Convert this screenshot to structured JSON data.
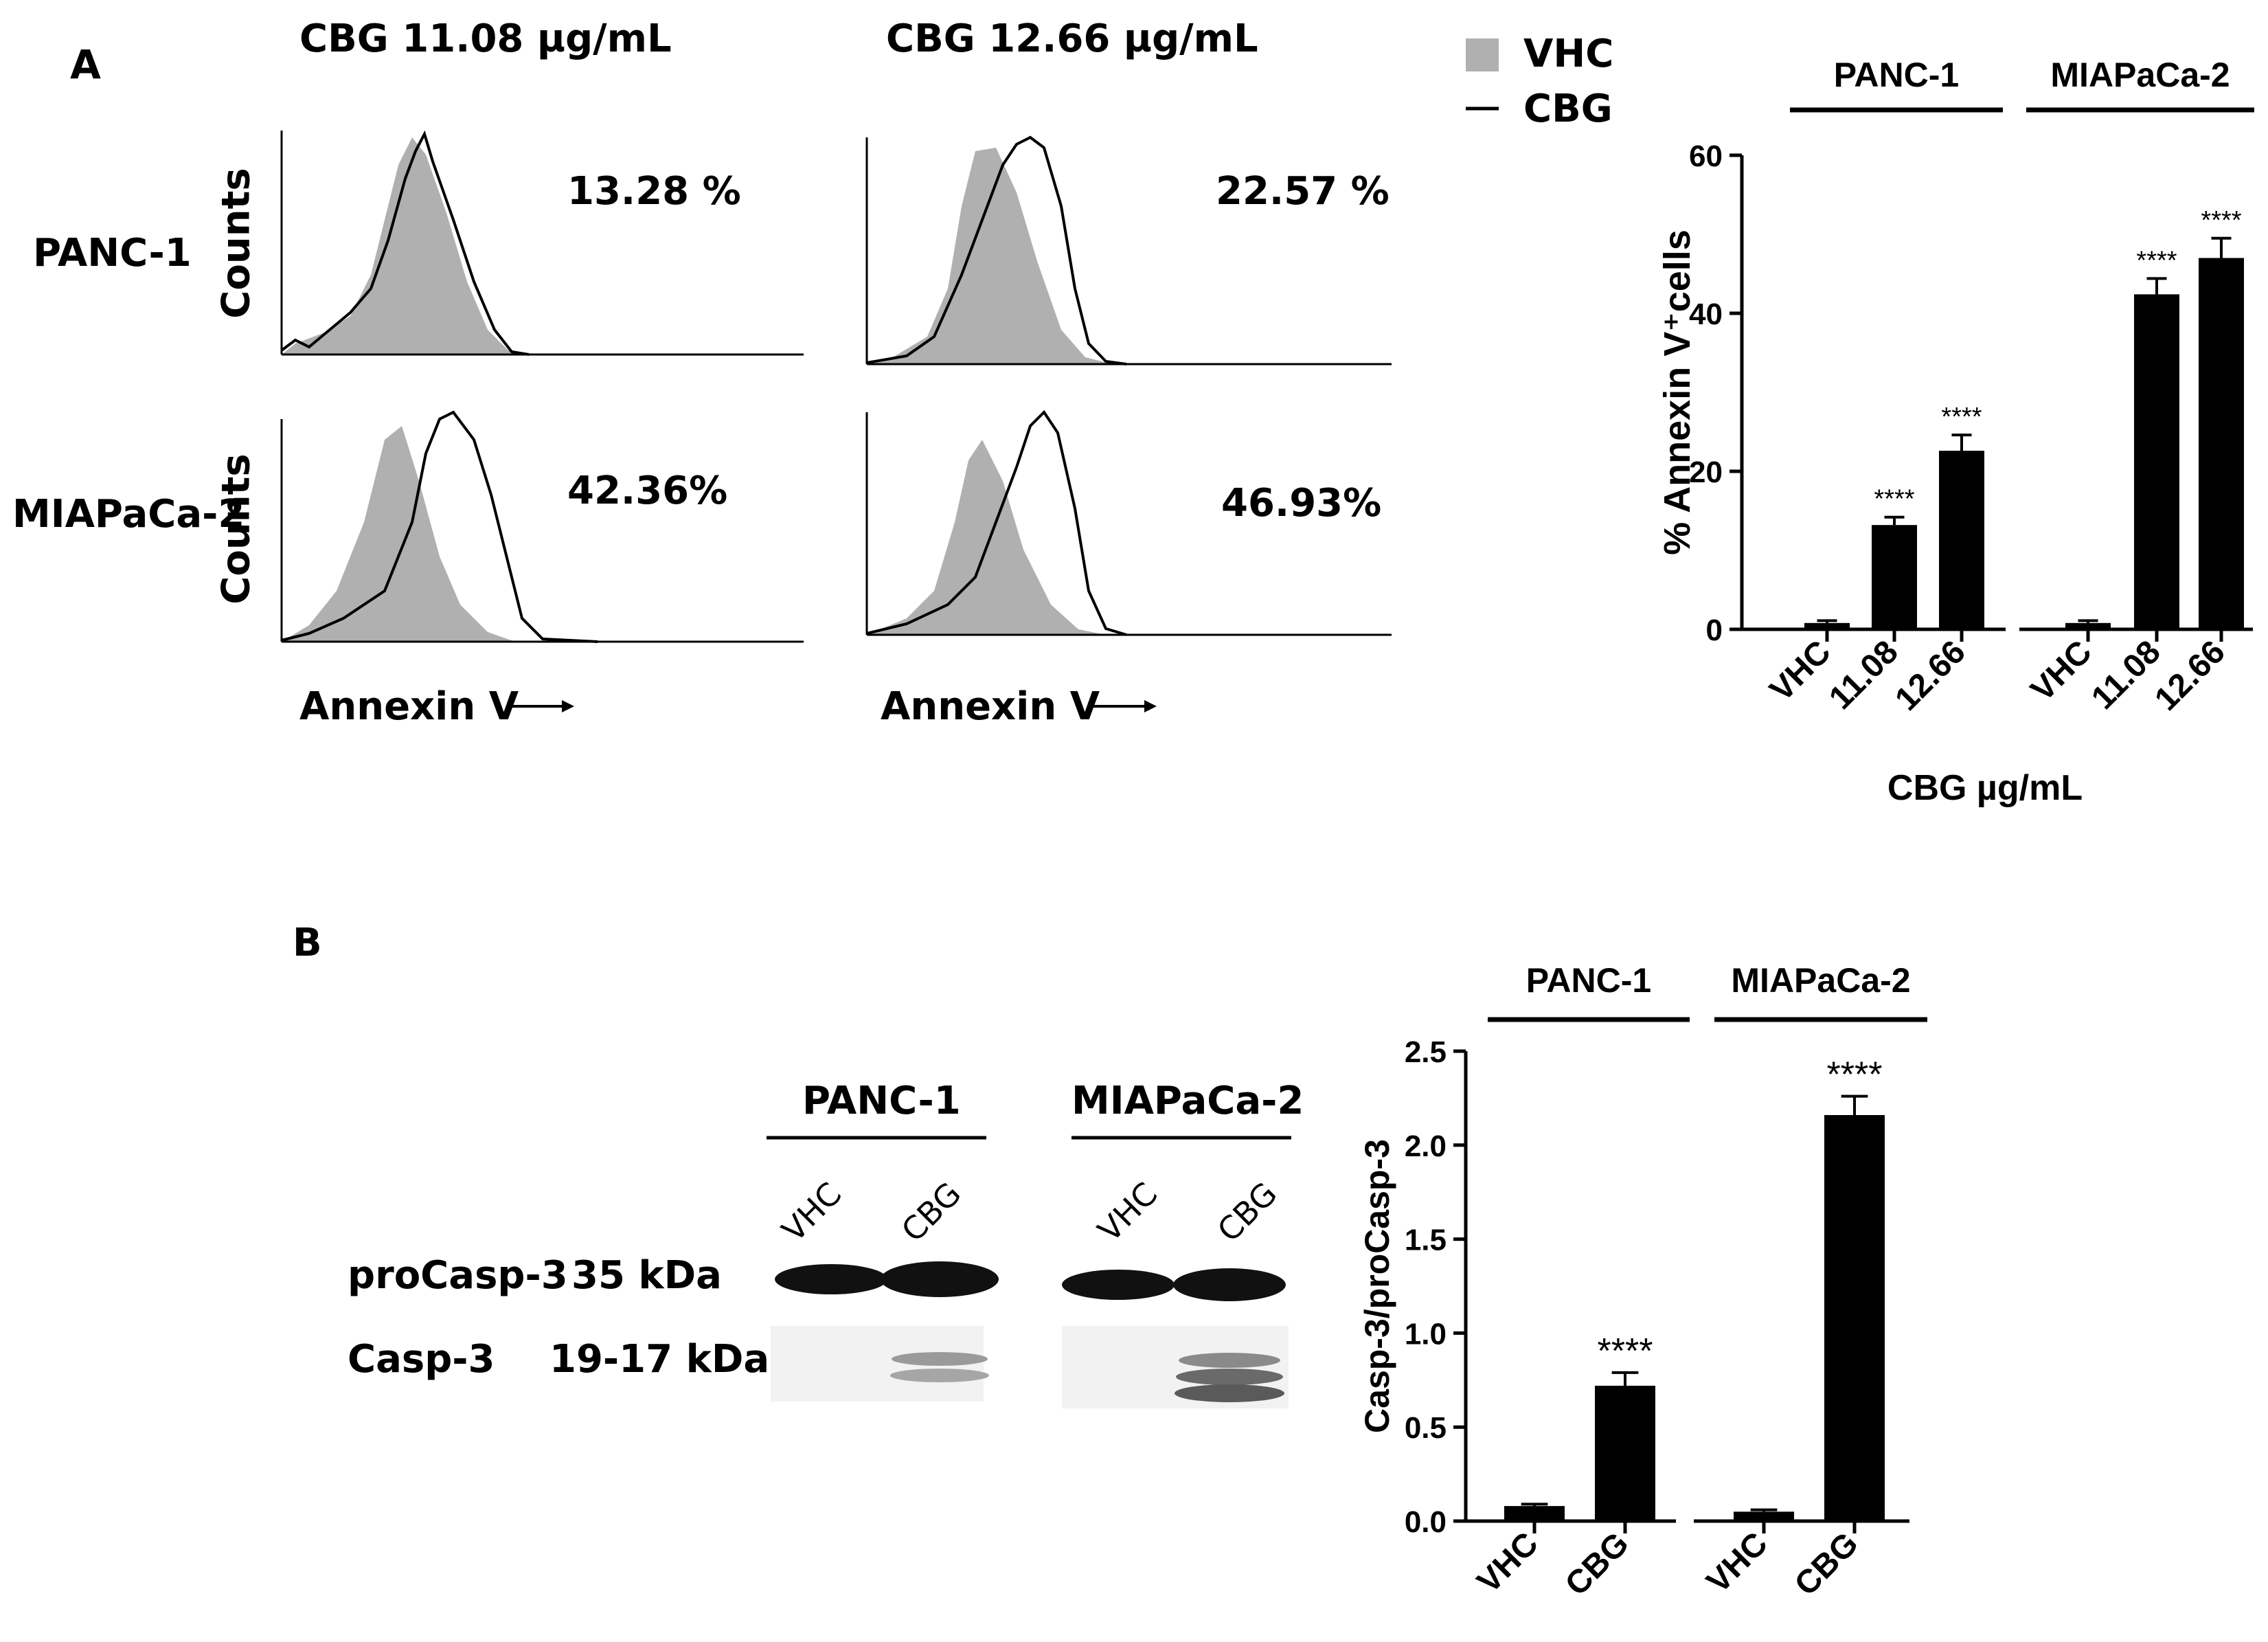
{
  "panel_a": {
    "letter": "A",
    "col_titles": [
      "CBG 11.08 µg/mL",
      "CBG 12.66 µg/mL"
    ],
    "row_labels": [
      "PANC-1",
      "MIAPaCa-2"
    ],
    "y_axis_label": "Counts",
    "x_axis_label": "Annexin V",
    "percentages": [
      "13.28 %",
      "22.57 %",
      "42.36%",
      "46.93%"
    ],
    "legend": [
      {
        "label": "VHC",
        "color": "#b0b0b0",
        "swatch": "filled"
      },
      {
        "label": "CBG",
        "color": "#000000",
        "swatch": "line"
      }
    ]
  },
  "panel_b": {
    "letter": "B",
    "blot": {
      "groups": [
        "PANC-1",
        "MIAPaCa-2"
      ],
      "lanes": [
        "VHC",
        "CBG",
        "VHC",
        "CBG"
      ],
      "bands": [
        {
          "protein": "proCasp-3",
          "size": "35 kDa"
        },
        {
          "protein": "Casp-3",
          "size": "19-17 kDa"
        }
      ]
    }
  },
  "chart_data": [
    {
      "type": "bar",
      "ylabel": "% Annexin V⁺cells",
      "xlabel": "CBG µg/mL",
      "groups": [
        "PANC-1",
        "MIAPaCa-2"
      ],
      "categories": [
        "VHC",
        "11.08",
        "12.66",
        "VHC",
        "11.08",
        "12.66"
      ],
      "values": [
        0.8,
        13.2,
        22.6,
        0.8,
        42.4,
        47.0
      ],
      "errors": [
        0.3,
        1.0,
        2.0,
        0.3,
        2.0,
        2.5
      ],
      "significance": [
        "",
        "****",
        "****",
        "",
        "****",
        "****"
      ],
      "ylim": [
        0,
        60
      ],
      "yticks": [
        "0",
        "20",
        "40",
        "60"
      ],
      "bar_color": "#000000"
    },
    {
      "type": "bar",
      "ylabel": "Casp-3/proCasp-3",
      "groups": [
        "PANC-1",
        "MIAPaCa-2"
      ],
      "categories": [
        "VHC",
        "CBG",
        "VHC",
        "CBG"
      ],
      "values": [
        0.08,
        0.72,
        0.05,
        2.16
      ],
      "errors": [
        0.01,
        0.07,
        0.01,
        0.1
      ],
      "significance": [
        "",
        "****",
        "",
        "****"
      ],
      "ylim": [
        0,
        2.5
      ],
      "yticks": [
        "0.0",
        "0.5",
        "1.0",
        "1.5",
        "2.0",
        "2.5"
      ],
      "bar_color": "#000000"
    }
  ]
}
